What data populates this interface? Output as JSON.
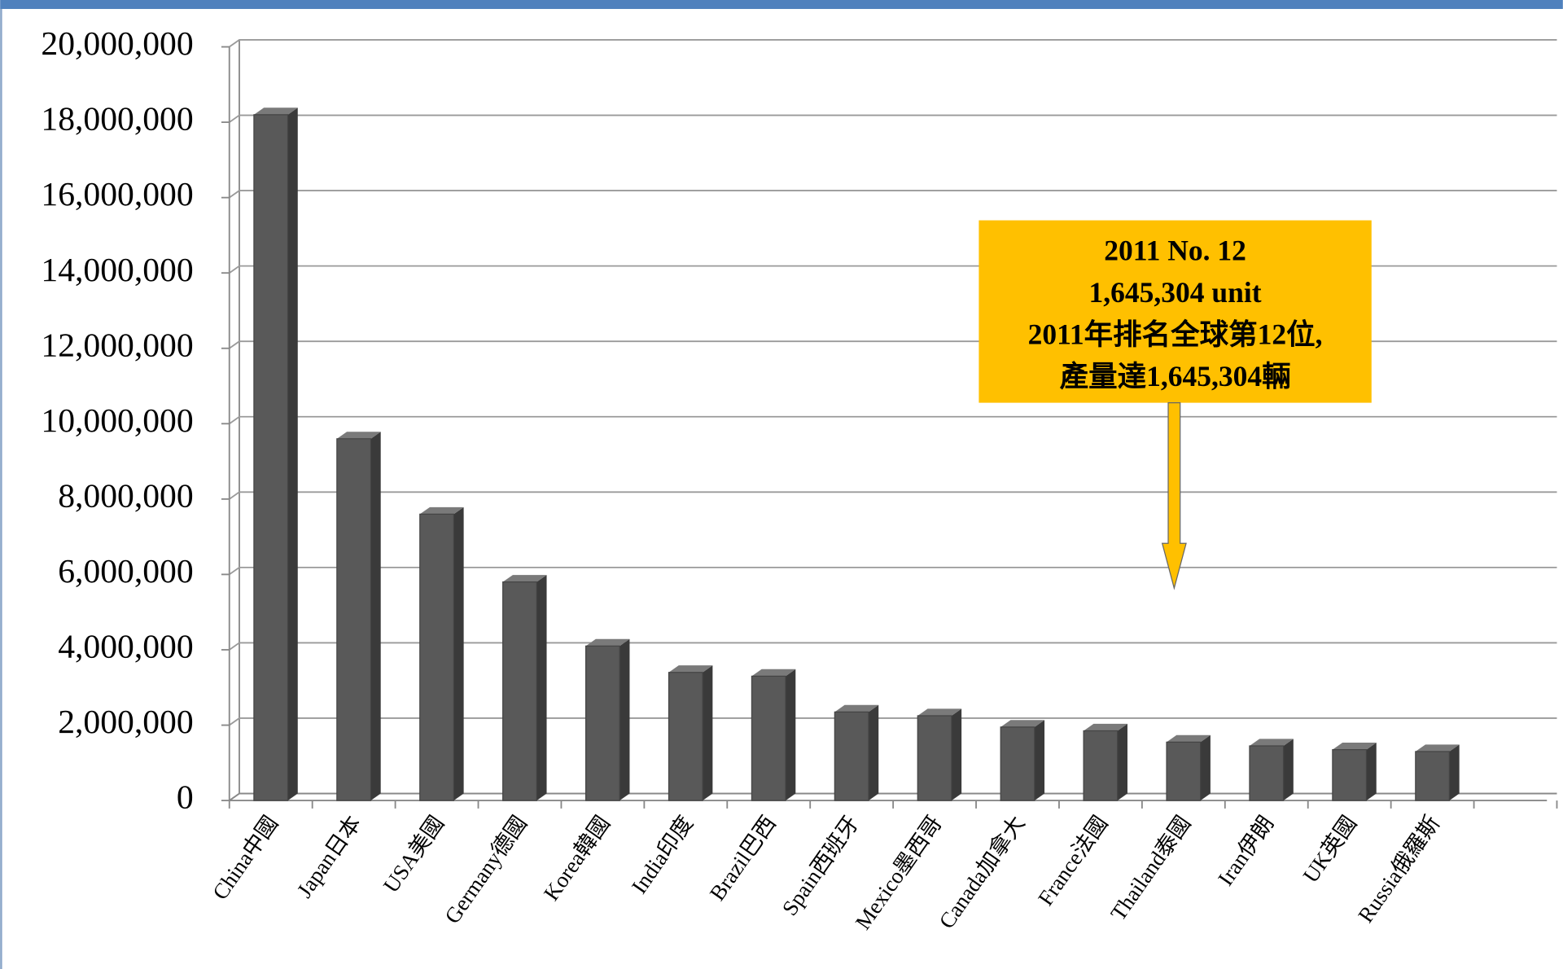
{
  "chart_data": {
    "type": "bar",
    "categories": [
      "China中國",
      "Japan日本",
      "USA美國",
      "Germany德國",
      "Korea韓國",
      "India印度",
      "Brazil巴西",
      "Spain西班牙",
      "Mexico墨西哥",
      "Canada加拿大",
      "France法國",
      "Thailand泰國",
      "Iran伊朗",
      "UK英國",
      "Russia俄羅斯"
    ],
    "values": [
      18200000,
      9600000,
      7600000,
      5800000,
      4100000,
      3400000,
      3300000,
      2350000,
      2250000,
      1950000,
      1850000,
      1550000,
      1450000,
      1350000,
      1300000
    ],
    "color": "#595959",
    "ylim": [
      0,
      20000000
    ],
    "yticks": [
      0,
      {
        "value": 2000000,
        "label": "2,000,000"
      },
      {
        "value": 4000000,
        "label": "4,000,000"
      },
      {
        "value": 6000000,
        "label": "6,000,000"
      },
      {
        "value": 8000000,
        "label": "8,000,000"
      },
      {
        "value": 10000000,
        "label": "10,000,000"
      },
      {
        "value": 12000000,
        "label": "12,000,000"
      },
      {
        "value": 14000000,
        "label": "14,000,000"
      },
      {
        "value": 16000000,
        "label": "16,000,000"
      },
      {
        "value": 18000000,
        "label": "18,000,000"
      },
      {
        "value": 20000000,
        "label": "20,000,000"
      }
    ],
    "grid": true,
    "annotation": [
      "2011 No. 12",
      "1,645,304 unit",
      "2011年排名全球第12位,",
      "產量達1,645,304輛"
    ]
  }
}
